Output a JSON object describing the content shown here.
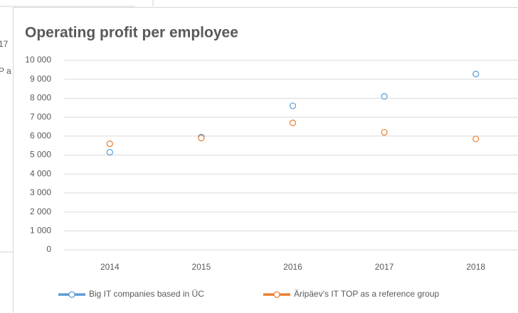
{
  "background_fragments": [
    "17",
    "P a"
  ],
  "chart_data": {
    "type": "line",
    "title": "Operating profit per employee",
    "categories": [
      "2014",
      "2015",
      "2016",
      "2017",
      "2018"
    ],
    "series": [
      {
        "name": "Big IT companies based in ÜC",
        "color": "#5b9bd5",
        "values": [
          5150,
          5950,
          7600,
          8100,
          9280
        ]
      },
      {
        "name": "Äripäev's IT TOP as a reference group",
        "color": "#ed7d31",
        "values": [
          5600,
          5900,
          6700,
          6200,
          5850
        ]
      }
    ],
    "ylim": [
      0,
      10000
    ],
    "yticks": [
      0,
      {
        "value": 1000,
        "label": "1 000"
      },
      {
        "value": 2000,
        "label": "2 000"
      },
      {
        "value": 3000,
        "label": "3 000"
      },
      {
        "value": 4000,
        "label": "4 000"
      },
      {
        "value": 5000,
        "label": "5 000"
      },
      {
        "value": 6000,
        "label": "6 000"
      },
      {
        "value": 7000,
        "label": "7 000"
      },
      {
        "value": 8000,
        "label": "8 000"
      },
      {
        "value": 9000,
        "label": "9 000"
      },
      {
        "value": 10000,
        "label": "10 000"
      }
    ],
    "grid": true,
    "legend": "bottom"
  }
}
